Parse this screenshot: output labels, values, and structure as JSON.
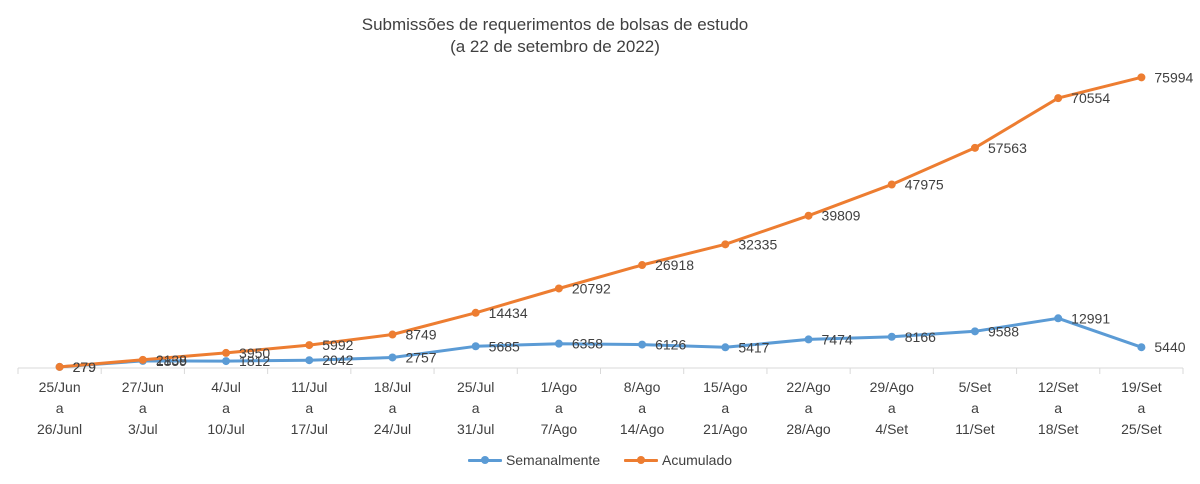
{
  "chart_data": {
    "type": "line",
    "title": "Submissões de requerimentos de bolsas de estudo",
    "subtitle": "(a 22 de setembro de 2022)",
    "categories": [
      [
        "25/Jun",
        "a",
        "26/Junl"
      ],
      [
        "27/Jun",
        "a",
        "3/Jul"
      ],
      [
        "4/Jul",
        "a",
        "10/Jul"
      ],
      [
        "11/Jul",
        "a",
        "17/Jul"
      ],
      [
        "18/Jul",
        "a",
        "24/Jul"
      ],
      [
        "25/Jul",
        "a",
        "31/Jul"
      ],
      [
        "1/Ago",
        "a",
        "7/Ago"
      ],
      [
        "8/Ago",
        "a",
        "14/Ago"
      ],
      [
        "15/Ago",
        "a",
        "21/Ago"
      ],
      [
        "22/Ago",
        "a",
        "28/Ago"
      ],
      [
        "29/Ago",
        "a",
        "4/Set"
      ],
      [
        "5/Set",
        "a",
        "11/Set"
      ],
      [
        "12/Set",
        "a",
        "18/Set"
      ],
      [
        "19/Set",
        "a",
        "25/Set"
      ]
    ],
    "series": [
      {
        "name": "Semanalmente",
        "color": "#5B9BD5",
        "values": [
          279,
          1859,
          1812,
          2042,
          2757,
          5685,
          6358,
          6126,
          5417,
          7474,
          8166,
          9588,
          12991,
          5440
        ]
      },
      {
        "name": "Acumulado",
        "color": "#ED7D31",
        "values": [
          279,
          2138,
          3950,
          5992,
          8749,
          14434,
          20792,
          26918,
          32335,
          39809,
          47975,
          57563,
          70554,
          75994
        ]
      }
    ],
    "ylim": [
      0,
      80000
    ],
    "grid": false,
    "data_labels": true,
    "legend_position": "bottom"
  }
}
